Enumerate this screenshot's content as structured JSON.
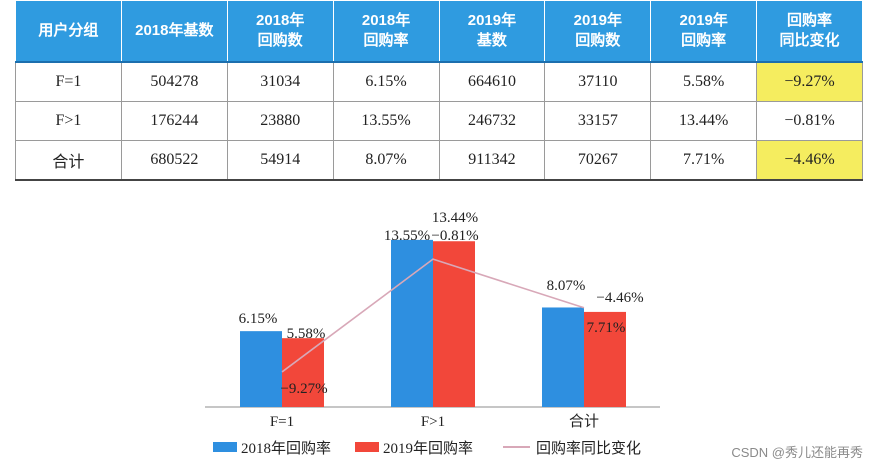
{
  "table": {
    "headers": [
      "用户分组",
      "2018年基数",
      "2018年\n回购数",
      "2018年\n回购率",
      "2019年\n基数",
      "2019年\n回购数",
      "2019年\n回购率",
      "回购率\n同比变化"
    ],
    "rows": [
      [
        "F=1",
        "504278",
        "31034",
        "6.15%",
        "664610",
        "37110",
        "5.58%",
        "−9.27%"
      ],
      [
        "F>1",
        "176244",
        "23880",
        "13.55%",
        "246732",
        "33157",
        "13.44%",
        "−0.81%"
      ],
      [
        "合计",
        "680522",
        "54914",
        "8.07%",
        "911342",
        "70267",
        "7.71%",
        "−4.46%"
      ]
    ],
    "highlight_rows": [
      0,
      2
    ],
    "highlight_color": "#f5ed5f",
    "header_color": "#2f9be0"
  },
  "chart_data": {
    "type": "bar",
    "categories": [
      "F=1",
      "F>1",
      "合计"
    ],
    "series": [
      {
        "name": "2018年回购率",
        "type": "bar",
        "color": "#2e8fe0",
        "values": [
          6.15,
          13.55,
          8.07
        ],
        "labels": [
          "6.15%",
          "13.55%",
          "8.07%"
        ]
      },
      {
        "name": "2019年回购率",
        "type": "bar",
        "color": "#f2473a",
        "values": [
          5.58,
          13.44,
          7.71
        ],
        "labels": [
          "5.58%",
          "13.44%",
          "7.71%"
        ]
      },
      {
        "name": "回购率同比变化",
        "type": "line",
        "color": "#d8a8b8",
        "values": [
          -9.27,
          -0.81,
          -4.46
        ],
        "labels": [
          "−9.27%",
          "−0.81%",
          "−4.46%"
        ]
      }
    ],
    "ylim": [
      0,
      15
    ],
    "line_ylim": [
      -11,
      1
    ],
    "title": "",
    "xlabel": "",
    "ylabel": "",
    "legend_position": "bottom"
  },
  "watermark": "CSDN @秀儿还能再秀"
}
